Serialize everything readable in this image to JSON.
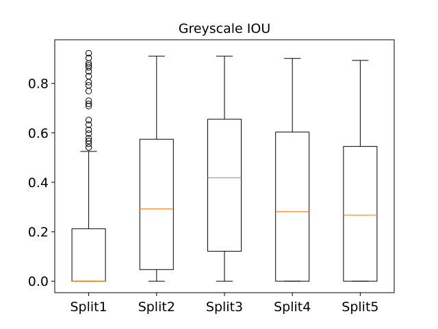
{
  "chart_data": {
    "type": "box",
    "title": "Greyscale IOU",
    "xlabel": "",
    "ylabel": "",
    "ylim": [
      -0.0465,
      0.9765
    ],
    "yticks": [
      0.0,
      0.2,
      0.4,
      0.6,
      0.8
    ],
    "ytick_labels": [
      "0.0",
      "0.2",
      "0.4",
      "0.6",
      "0.8"
    ],
    "categories": [
      "Split1",
      "Split2",
      "Split3",
      "Split4",
      "Split5"
    ],
    "grid": false,
    "colors": {
      "box": "#000000",
      "median": "#ff7f0e",
      "flier": "#000000"
    },
    "boxes": [
      {
        "label": "Split1",
        "whislo": 0.0,
        "q1": 0.0,
        "med": 0.0,
        "q3": 0.212,
        "whishi": 0.525,
        "fliers": [
          0.541,
          0.556,
          0.567,
          0.578,
          0.597,
          0.612,
          0.633,
          0.652,
          0.708,
          0.717,
          0.73,
          0.769,
          0.792,
          0.805,
          0.829,
          0.849,
          0.865,
          0.873,
          0.881,
          0.903,
          0.922
        ]
      },
      {
        "label": "Split2",
        "whislo": 0.0,
        "q1": 0.047,
        "med": 0.292,
        "q3": 0.574,
        "whishi": 0.91,
        "fliers": []
      },
      {
        "label": "Split3",
        "whislo": 0.0,
        "q1": 0.121,
        "med": 0.418,
        "q3": 0.655,
        "whishi": 0.91,
        "fliers": []
      },
      {
        "label": "Split4",
        "whislo": 0.0,
        "q1": 0.0,
        "med": 0.281,
        "q3": 0.603,
        "whishi": 0.901,
        "fliers": []
      },
      {
        "label": "Split5",
        "whislo": 0.0,
        "q1": 0.0,
        "med": 0.267,
        "q3": 0.545,
        "whishi": 0.893,
        "fliers": []
      }
    ]
  }
}
